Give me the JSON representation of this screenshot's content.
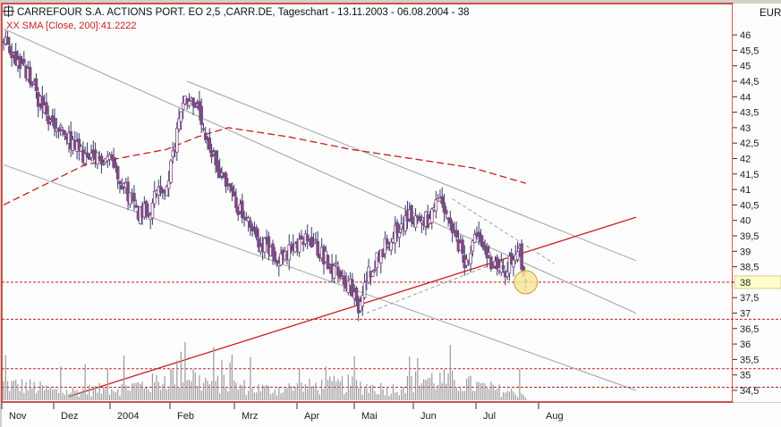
{
  "header": {
    "title": "CARREFOUR S.A. ACTIONS PORT. EO 2,5 ,CARR.DE, Tageschart - 13.11.2003 - 06.08.2004 - 38",
    "indicator": "XX SMA [Close, 200]:41.2222",
    "currency": "EUR"
  },
  "colors": {
    "background": "#fdfdfd",
    "frame": "#c81e1e",
    "candle_body": "#7d4a80",
    "candle_wick": "#3a3a6a",
    "sma": "#c81e1e",
    "channel": "#a0a0a0",
    "support": "#c81e1e",
    "volume": "#9a9a9a",
    "marker_fill": "#f5e79a",
    "marker_stroke": "#c8a032",
    "current_price_box": "#ffffcc"
  },
  "chart_data": {
    "type": "candlestick",
    "title": "CARREFOUR S.A. ACTIONS PORT. EO 2,5 ,CARR.DE, Tageschart - 13.11.2003 - 06.08.2004 - 38",
    "y_axis_unit": "EUR",
    "ylim": [
      34.1,
      46.3
    ],
    "y_ticks": [
      34.5,
      35,
      35.5,
      36,
      36.5,
      37,
      37.5,
      38,
      38.5,
      39,
      39.5,
      40,
      40.5,
      41,
      41.5,
      42,
      42.5,
      43,
      43.5,
      44,
      44.5,
      45,
      45.5,
      46
    ],
    "y_tick_labels": [
      "34,5",
      "35",
      "35,5",
      "36",
      "36,5",
      "37",
      "37,5",
      "38",
      "38,5",
      "39",
      "39,5",
      "40",
      "40,5",
      "41",
      "41,5",
      "42",
      "42,5",
      "43",
      "43,5",
      "44",
      "44,5",
      "45",
      "45,5",
      "46"
    ],
    "x_labels": [
      "Nov",
      "Dez",
      "2004",
      "Feb",
      "Mrz",
      "Apr",
      "Mai",
      "Jun",
      "Jul",
      "Aug"
    ],
    "date_range": [
      "13.11.2003",
      "06.08.2004"
    ],
    "last_close": 38,
    "sma": {
      "name": "XX SMA [Close, 200]",
      "value": 41.2222
    },
    "price_path": [
      [
        0,
        45.8
      ],
      [
        12,
        44.7
      ],
      [
        22,
        43.2
      ],
      [
        32,
        42.6
      ],
      [
        42,
        41.9
      ],
      [
        52,
        42.1
      ],
      [
        60,
        41.0
      ],
      [
        66,
        40.3
      ],
      [
        72,
        40.4
      ],
      [
        76,
        41.1
      ],
      [
        80,
        40.9
      ],
      [
        84,
        42.5
      ],
      [
        88,
        44.0
      ],
      [
        94,
        43.8
      ],
      [
        100,
        42.3
      ],
      [
        108,
        41.4
      ],
      [
        116,
        40.3
      ],
      [
        124,
        39.4
      ],
      [
        136,
        38.8
      ],
      [
        150,
        39.4
      ],
      [
        160,
        38.6
      ],
      [
        170,
        37.9
      ],
      [
        174,
        37.0
      ],
      [
        178,
        38.2
      ],
      [
        190,
        39.5
      ],
      [
        198,
        40.1
      ],
      [
        208,
        40.0
      ],
      [
        214,
        40.6
      ],
      [
        220,
        39.6
      ],
      [
        226,
        38.7
      ],
      [
        232,
        39.4
      ],
      [
        240,
        38.6
      ],
      [
        246,
        38.3
      ],
      [
        252,
        39.2
      ],
      [
        256,
        38.0
      ]
    ],
    "sma_path": [
      [
        0,
        40.5
      ],
      [
        40,
        41.8
      ],
      [
        80,
        42.3
      ],
      [
        95,
        42.7
      ],
      [
        110,
        43.0
      ],
      [
        140,
        42.7
      ],
      [
        170,
        42.3
      ],
      [
        200,
        42.0
      ],
      [
        230,
        41.7
      ],
      [
        256,
        41.2
      ]
    ],
    "volume_path": [
      [
        0,
        0.3
      ],
      [
        14,
        0.25
      ],
      [
        28,
        0.15
      ],
      [
        48,
        0.2
      ],
      [
        72,
        0.3
      ],
      [
        90,
        0.55
      ],
      [
        96,
        0.35
      ],
      [
        130,
        0.2
      ],
      [
        168,
        0.3
      ],
      [
        190,
        0.2
      ],
      [
        206,
        0.4
      ],
      [
        220,
        0.35
      ],
      [
        256,
        0.1
      ]
    ],
    "horizontal_lines": [
      38,
      36.8,
      35.2,
      34.6
    ],
    "trendlines": [
      {
        "name": "upper-channel",
        "style": "gray",
        "points": [
          [
            0,
            46.2
          ],
          [
            310,
            37.0
          ]
        ]
      },
      {
        "name": "lower-channel",
        "style": "gray",
        "points": [
          [
            0,
            41.8
          ],
          [
            310,
            34.5
          ]
        ]
      },
      {
        "name": "mid-resistance",
        "style": "gray",
        "points": [
          [
            90,
            44.5
          ],
          [
            310,
            38.7
          ]
        ]
      },
      {
        "name": "support",
        "style": "red",
        "points": [
          [
            32,
            34.3
          ],
          [
            310,
            40.1
          ]
        ]
      }
    ],
    "marker": {
      "x": 256,
      "y": 38.0
    }
  }
}
